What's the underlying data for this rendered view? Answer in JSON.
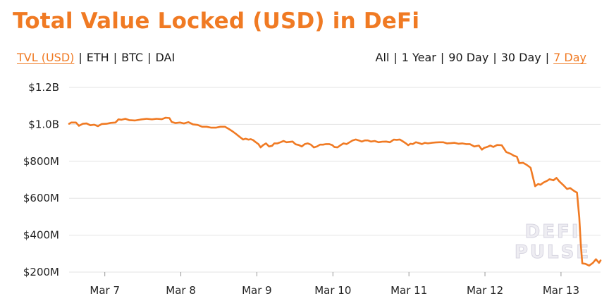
{
  "title": "Total Value Locked (USD) in DeFi",
  "metric_options": [
    {
      "label": "TVL (USD)",
      "active": true
    },
    {
      "label": "ETH",
      "active": false
    },
    {
      "label": "BTC",
      "active": false
    },
    {
      "label": "DAI",
      "active": false
    }
  ],
  "range_options": [
    {
      "label": "All",
      "active": false
    },
    {
      "label": "1 Year",
      "active": false
    },
    {
      "label": "90 Day",
      "active": false
    },
    {
      "label": "30 Day",
      "active": false
    },
    {
      "label": "7 Day",
      "active": true
    }
  ],
  "separator": "|",
  "watermark": {
    "line1": "DEFI",
    "line2": "PULSE"
  },
  "colors": {
    "accent": "#f07a23",
    "line": "#f07a23",
    "grid": "#e3e3e3",
    "text": "#1a1a1a"
  },
  "chart_data": {
    "type": "line",
    "title": "Total Value Locked (USD) in DeFi",
    "xlabel": "",
    "ylabel": "",
    "y_unit": "USD (millions)",
    "ylim": [
      200,
      1200
    ],
    "yticks": [
      200,
      400,
      600,
      800,
      1000,
      1200
    ],
    "ytick_labels": [
      "$200M",
      "$400M",
      "$600M",
      "$800M",
      "$1.0B",
      "$1.2B"
    ],
    "xticks": [
      7,
      8,
      9,
      10,
      11,
      12,
      13
    ],
    "xtick_labels": [
      "Mar 7",
      "Mar 8",
      "Mar 9",
      "Mar 10",
      "Mar 11",
      "Mar 12",
      "Mar 13"
    ],
    "xlim": [
      6.53,
      13.52
    ],
    "grid": "horizontal",
    "legend": "none",
    "series": [
      {
        "color": "#f07a23",
        "points": [
          [
            6.53,
            1003
          ],
          [
            6.56,
            1010
          ],
          [
            6.62,
            1010
          ],
          [
            6.66,
            992
          ],
          [
            6.71,
            1003
          ],
          [
            6.76,
            1005
          ],
          [
            6.81,
            995
          ],
          [
            6.86,
            998
          ],
          [
            6.91,
            990
          ],
          [
            6.96,
            1002
          ],
          [
            7.02,
            1003
          ],
          [
            7.08,
            1008
          ],
          [
            7.14,
            1010
          ],
          [
            7.18,
            1027
          ],
          [
            7.22,
            1025
          ],
          [
            7.27,
            1030
          ],
          [
            7.32,
            1023
          ],
          [
            7.4,
            1021
          ],
          [
            7.47,
            1026
          ],
          [
            7.55,
            1030
          ],
          [
            7.62,
            1027
          ],
          [
            7.68,
            1030
          ],
          [
            7.75,
            1028
          ],
          [
            7.8,
            1036
          ],
          [
            7.85,
            1034
          ],
          [
            7.88,
            1013
          ],
          [
            7.93,
            1007
          ],
          [
            7.99,
            1010
          ],
          [
            8.04,
            1005
          ],
          [
            8.1,
            1012
          ],
          [
            8.16,
            1000
          ],
          [
            8.22,
            997
          ],
          [
            8.28,
            987
          ],
          [
            8.34,
            987
          ],
          [
            8.4,
            982
          ],
          [
            8.46,
            982
          ],
          [
            8.52,
            987
          ],
          [
            8.58,
            987
          ],
          [
            8.63,
            975
          ],
          [
            8.67,
            965
          ],
          [
            8.72,
            950
          ],
          [
            8.78,
            930
          ],
          [
            8.82,
            918
          ],
          [
            8.85,
            922
          ],
          [
            8.89,
            917
          ],
          [
            8.92,
            920
          ],
          [
            8.95,
            915
          ],
          [
            8.98,
            905
          ],
          [
            9.02,
            893
          ],
          [
            9.05,
            875
          ],
          [
            9.08,
            887
          ],
          [
            9.12,
            897
          ],
          [
            9.16,
            880
          ],
          [
            9.2,
            884
          ],
          [
            9.23,
            897
          ],
          [
            9.27,
            897
          ],
          [
            9.31,
            903
          ],
          [
            9.35,
            910
          ],
          [
            9.39,
            903
          ],
          [
            9.43,
            905
          ],
          [
            9.47,
            907
          ],
          [
            9.51,
            892
          ],
          [
            9.55,
            888
          ],
          [
            9.59,
            880
          ],
          [
            9.63,
            893
          ],
          [
            9.67,
            897
          ],
          [
            9.71,
            890
          ],
          [
            9.75,
            875
          ],
          [
            9.79,
            880
          ],
          [
            9.83,
            890
          ],
          [
            9.87,
            890
          ],
          [
            9.91,
            893
          ],
          [
            9.95,
            893
          ],
          [
            9.99,
            888
          ],
          [
            10.02,
            877
          ],
          [
            10.06,
            875
          ],
          [
            10.1,
            887
          ],
          [
            10.14,
            897
          ],
          [
            10.18,
            893
          ],
          [
            10.22,
            903
          ],
          [
            10.26,
            913
          ],
          [
            10.3,
            918
          ],
          [
            10.34,
            913
          ],
          [
            10.38,
            907
          ],
          [
            10.42,
            913
          ],
          [
            10.46,
            913
          ],
          [
            10.5,
            907
          ],
          [
            10.55,
            910
          ],
          [
            10.6,
            903
          ],
          [
            10.65,
            906
          ],
          [
            10.7,
            907
          ],
          [
            10.75,
            903
          ],
          [
            10.8,
            917
          ],
          [
            10.84,
            916
          ],
          [
            10.88,
            918
          ],
          [
            10.92,
            908
          ],
          [
            10.96,
            897
          ],
          [
            10.99,
            887
          ],
          [
            11.02,
            895
          ],
          [
            11.05,
            893
          ],
          [
            11.09,
            903
          ],
          [
            11.13,
            899
          ],
          [
            11.17,
            893
          ],
          [
            11.21,
            900
          ],
          [
            11.25,
            897
          ],
          [
            11.3,
            900
          ],
          [
            11.35,
            902
          ],
          [
            11.4,
            903
          ],
          [
            11.45,
            903
          ],
          [
            11.5,
            897
          ],
          [
            11.55,
            898
          ],
          [
            11.6,
            900
          ],
          [
            11.65,
            895
          ],
          [
            11.7,
            897
          ],
          [
            11.75,
            893
          ],
          [
            11.8,
            893
          ],
          [
            11.86,
            880
          ],
          [
            11.92,
            885
          ],
          [
            11.96,
            863
          ],
          [
            11.99,
            873
          ],
          [
            12.03,
            878
          ],
          [
            12.07,
            885
          ],
          [
            12.11,
            878
          ],
          [
            12.16,
            888
          ],
          [
            12.22,
            887
          ],
          [
            12.28,
            850
          ],
          [
            12.34,
            840
          ],
          [
            12.38,
            830
          ],
          [
            12.42,
            825
          ],
          [
            12.45,
            790
          ],
          [
            12.5,
            792
          ],
          [
            12.55,
            780
          ],
          [
            12.6,
            765
          ],
          [
            12.66,
            665
          ],
          [
            12.7,
            677
          ],
          [
            12.73,
            673
          ],
          [
            12.77,
            685
          ],
          [
            12.82,
            695
          ],
          [
            12.85,
            703
          ],
          [
            12.9,
            697
          ],
          [
            12.94,
            710
          ],
          [
            12.98,
            690
          ],
          [
            13.04,
            667
          ],
          [
            13.08,
            650
          ],
          [
            13.12,
            655
          ],
          [
            13.17,
            640
          ],
          [
            13.21,
            630
          ],
          [
            13.24,
            497
          ],
          [
            13.26,
            350
          ],
          [
            13.28,
            247
          ],
          [
            13.32,
            245
          ],
          [
            13.37,
            235
          ],
          [
            13.42,
            250
          ],
          [
            13.46,
            270
          ],
          [
            13.5,
            250
          ],
          [
            13.52,
            263
          ]
        ]
      }
    ]
  }
}
